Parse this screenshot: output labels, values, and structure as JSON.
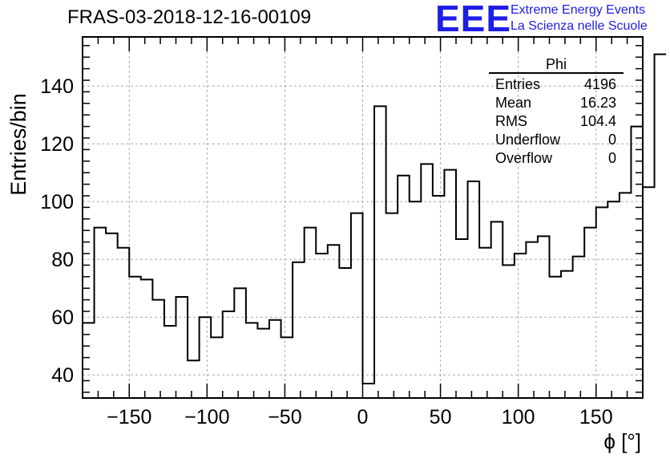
{
  "header": {
    "title": "FRAS-03-2018-12-16-00109",
    "logo_text": "EEE",
    "logo_line1": "Extreme Energy Events",
    "logo_line2": "La Scienza nelle Scuole"
  },
  "stats_box": {
    "title": "Phi",
    "rows": [
      {
        "label": "Entries",
        "value": "4196"
      },
      {
        "label": "Mean",
        "value": "16.23"
      },
      {
        "label": "RMS",
        "value": "104.4"
      },
      {
        "label": "Underflow",
        "value": "0"
      },
      {
        "label": "Overflow",
        "value": "0"
      }
    ]
  },
  "colors": {
    "logo": "#1e1ee6",
    "grid": "#aaaaaa",
    "line": "#000000"
  },
  "chart_data": {
    "type": "bar",
    "style": "step-histogram",
    "xlabel": "ϕ [°]",
    "ylabel": "Entries/bin",
    "xlim": [
      -180,
      180
    ],
    "ylim": [
      32,
      157
    ],
    "xticks": [
      -150,
      -100,
      -50,
      0,
      50,
      100,
      150
    ],
    "yticks": [
      40,
      60,
      80,
      100,
      120,
      140
    ],
    "grid": true,
    "bin_edges_start": -180,
    "bin_width": 7.5,
    "values": [
      58,
      91,
      89,
      84,
      74,
      73,
      66,
      57,
      67,
      45,
      60,
      53,
      62,
      70,
      58,
      56,
      59,
      53,
      79,
      91,
      82,
      85,
      77,
      96,
      37,
      133,
      96,
      109,
      100,
      113,
      102,
      111,
      87,
      107,
      84,
      93,
      78,
      82,
      86,
      88,
      74,
      76,
      81,
      91,
      98,
      100,
      103,
      126,
      105,
      151
    ]
  }
}
